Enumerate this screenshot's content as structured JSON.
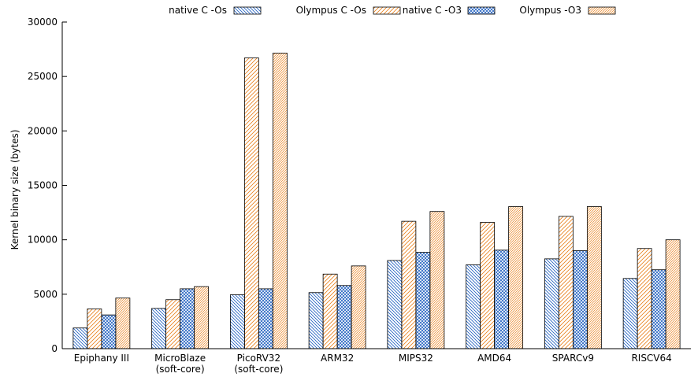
{
  "chart_data": {
    "type": "bar",
    "title": "",
    "xlabel": "",
    "ylabel": "Kernel binary size (bytes)",
    "ylim": [
      0,
      30000
    ],
    "yticks": [
      "0",
      "5000",
      "10000",
      "15000",
      "20000",
      "25000",
      "30000"
    ],
    "legend_position": "top",
    "grid": false,
    "categories": [
      [
        "Epiphany III"
      ],
      [
        "MicroBlaze",
        "(soft-core)"
      ],
      [
        "PicoRV32",
        "(soft-core)"
      ],
      [
        "ARM32"
      ],
      [
        "MIPS32"
      ],
      [
        "AMD64"
      ],
      [
        "SPARCv9"
      ],
      [
        "RISCV64"
      ]
    ],
    "series": [
      {
        "name": "native C -Os",
        "color": "#1f5fbf",
        "pattern": "diag-back",
        "values": [
          1900,
          3700,
          4950,
          5150,
          8100,
          7700,
          8250,
          6450
        ]
      },
      {
        "name": "Olympus C -Os",
        "color": "#e8801a",
        "pattern": "diag-fwd",
        "values": [
          3650,
          4500,
          26700,
          6850,
          11700,
          11600,
          12150,
          9200
        ]
      },
      {
        "name": "native C -O3",
        "color": "#1f5fbf",
        "pattern": "cross",
        "values": [
          3100,
          5500,
          5500,
          5800,
          8850,
          9050,
          9000,
          7250
        ]
      },
      {
        "name": "Olympus -O3",
        "color": "#e8801a",
        "pattern": "dense",
        "values": [
          4650,
          5700,
          27150,
          7600,
          12600,
          13050,
          13050,
          10000
        ]
      }
    ]
  }
}
